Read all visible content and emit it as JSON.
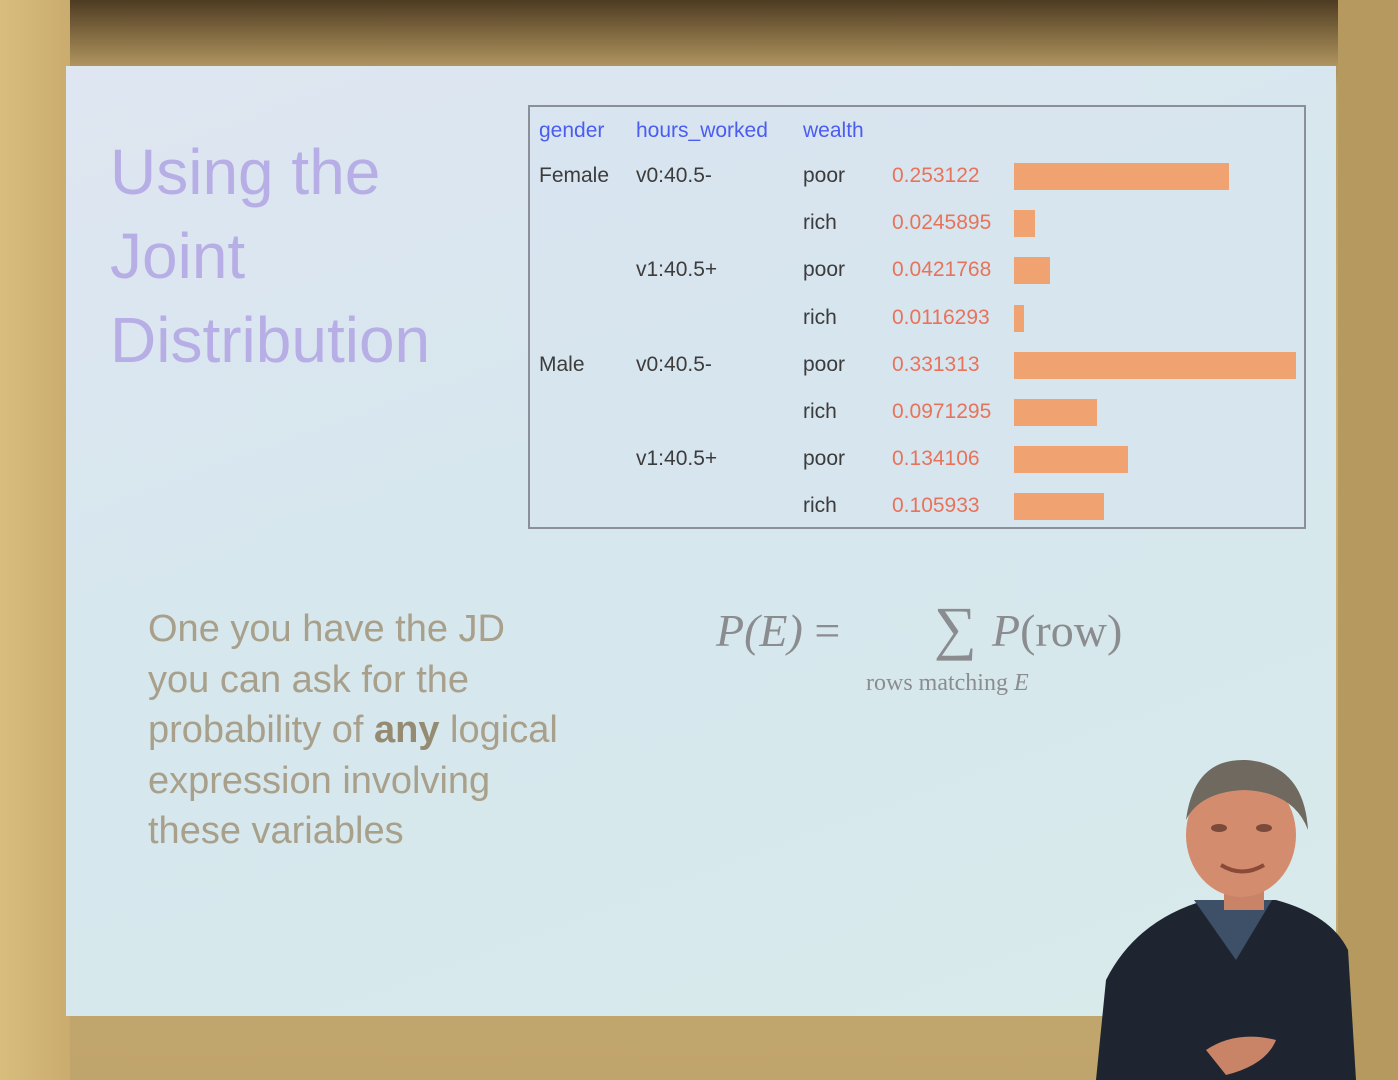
{
  "slide": {
    "title_lines": [
      "Using the",
      "Joint",
      "Distribution"
    ],
    "table": {
      "headers": [
        "gender",
        "hours_worked",
        "wealth"
      ],
      "rows": [
        {
          "gender": "Female",
          "hours": "v0:40.5-",
          "wealth": "poor",
          "prob": "0.253122",
          "value": 0.253122
        },
        {
          "gender": "",
          "hours": "",
          "wealth": "rich",
          "prob": "0.0245895",
          "value": 0.0245895
        },
        {
          "gender": "",
          "hours": "v1:40.5+",
          "wealth": "poor",
          "prob": "0.0421768",
          "value": 0.0421768
        },
        {
          "gender": "",
          "hours": "",
          "wealth": "rich",
          "prob": "0.0116293",
          "value": 0.0116293
        },
        {
          "gender": "Male",
          "hours": "v0:40.5-",
          "wealth": "poor",
          "prob": "0.331313",
          "value": 0.331313
        },
        {
          "gender": "",
          "hours": "",
          "wealth": "rich",
          "prob": "0.0971295",
          "value": 0.0971295
        },
        {
          "gender": "",
          "hours": "v1:40.5+",
          "wealth": "poor",
          "prob": "0.134106",
          "value": 0.134106
        },
        {
          "gender": "",
          "hours": "",
          "wealth": "rich",
          "prob": "0.105933",
          "value": 0.105933
        }
      ]
    },
    "body": {
      "line1": "One you have the JD",
      "line2": "you can ask for the",
      "line3_before": "probability of ",
      "line3_bold": "any",
      "line3_after": " logical",
      "line4": "expression involving",
      "line5": "these variables"
    },
    "formula": {
      "lhs": "P(E)",
      "eq": " =",
      "sigma": "∑",
      "rhs_p": "P",
      "rhs_arg": "(row)",
      "sub_text": "rows matching ",
      "sub_var": "E"
    }
  },
  "colors": {
    "bar": "#f0a271",
    "header": "#4b5cf0",
    "prob": "#e8735a",
    "title": "#b7aee6"
  }
}
